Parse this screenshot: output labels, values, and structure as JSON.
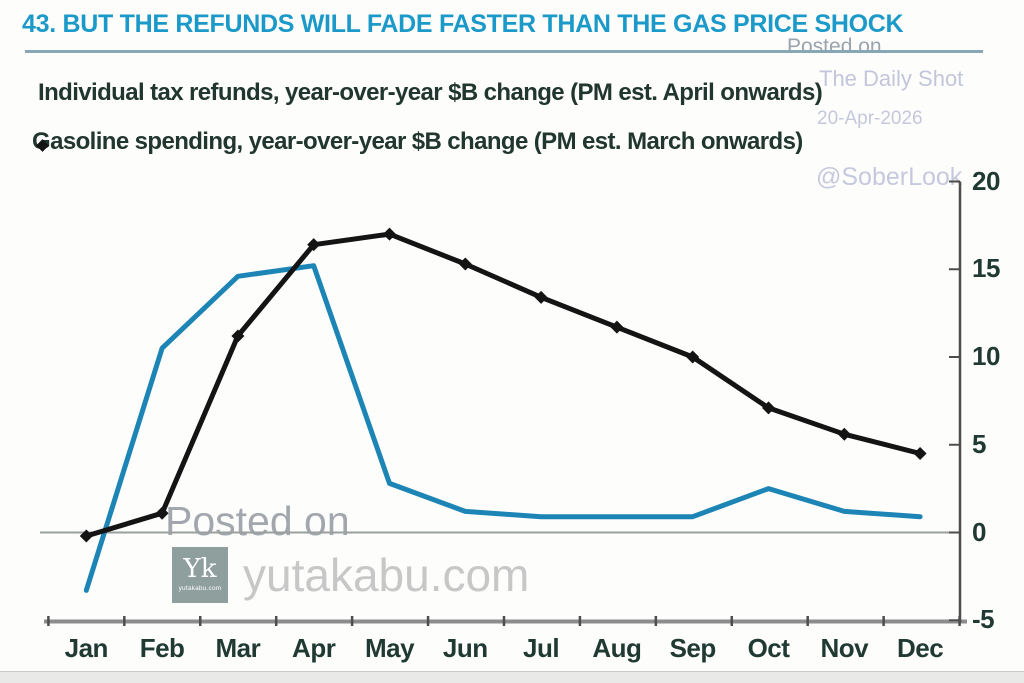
{
  "title": "43. BUT THE REFUNDS WILL FADE FASTER THAN THE GAS PRICE SHOCK",
  "colors": {
    "title_text": "#1b9aca",
    "title_underline": "#87a7b4",
    "refunds_line": "#1c85b5",
    "gasoline_line": "#141414",
    "axis_text": "#203a33",
    "axis_line": "#8c8c8c",
    "zero_line": "#9aa09e",
    "watermark_lavender": "#c3c6db",
    "watermark_gray": "#a2a7ad",
    "logo_background": "#8e9f9e"
  },
  "legend": [
    {
      "label": "Individual tax refunds, year-over-year $B change (PM est. April onwards)",
      "color": "#1c85b5",
      "marker": "line"
    },
    {
      "label": "Gasoline spending, year-over-year $B change (PM est. March onwards)",
      "color": "#141414",
      "marker": "line-diamond"
    }
  ],
  "watermarks": {
    "posted_on_top": "Posted on",
    "daily_shot": "The Daily Shot",
    "date": "20-Apr-2026",
    "soberlook": "@SoberLook",
    "posted_on_center": "Posted on",
    "site_text": "yutakabu.com",
    "logo": {
      "monogram": "Yk",
      "caption": "yutakabu.com"
    }
  },
  "chart_data": {
    "type": "line",
    "title": "43. BUT THE REFUNDS WILL FADE FASTER THAN THE GAS PRICE SHOCK",
    "categories": [
      "Jan",
      "Feb",
      "Mar",
      "Apr",
      "May",
      "Jun",
      "Jul",
      "Aug",
      "Sep",
      "Oct",
      "Nov",
      "Dec"
    ],
    "series": [
      {
        "name": "Individual tax refunds, year-over-year $B change (PM est. April onwards)",
        "color": "#1c85b5",
        "marker": "none",
        "values": [
          -3.3,
          10.5,
          14.6,
          15.2,
          2.8,
          1.2,
          0.9,
          0.9,
          0.9,
          2.5,
          1.2,
          0.9
        ]
      },
      {
        "name": "Gasoline spending, year-over-year $B change (PM est. March onwards)",
        "color": "#141414",
        "marker": "diamond",
        "values": [
          -0.2,
          1.1,
          11.2,
          16.4,
          17.0,
          15.3,
          13.4,
          11.7,
          10.0,
          7.1,
          5.6,
          4.5
        ]
      }
    ],
    "xlabel": "",
    "ylabel": "",
    "y_ticks": [
      20,
      15,
      10,
      5,
      0,
      -5
    ],
    "ylim": [
      -5,
      20
    ],
    "y_axis_side": "right",
    "grid": false,
    "zero_line": true,
    "legend_position": "top-left"
  }
}
